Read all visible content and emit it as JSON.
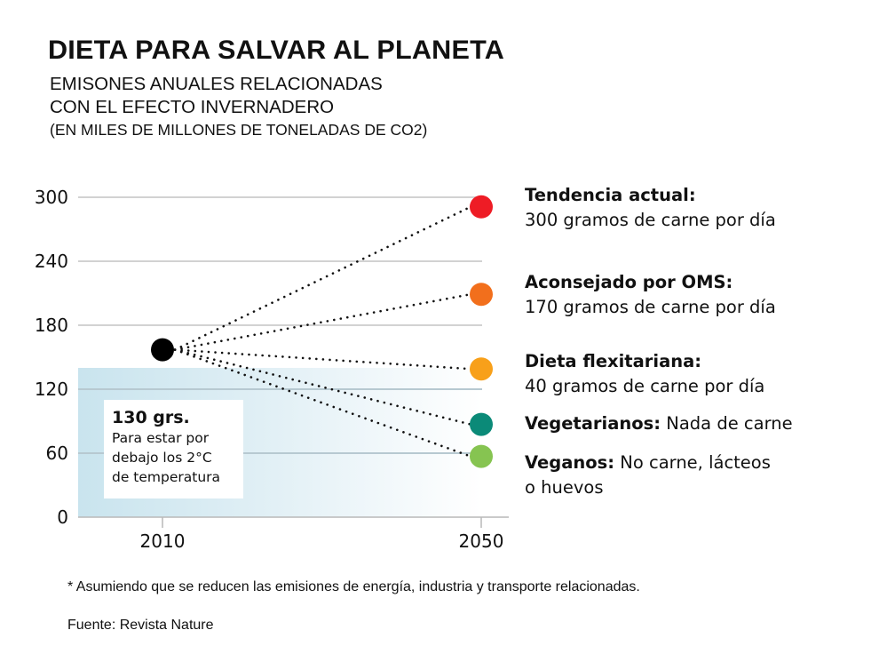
{
  "header": {
    "title": "DIETA PARA SALVAR AL PLANETA",
    "subtitle_line1": "EMISONES ANUALES RELACIONADAS",
    "subtitle_line2": "CON EL EFECTO INVERNADERO",
    "unit": "(EN MILES DE MILLONES DE TONELADAS DE CO2)"
  },
  "annotation": {
    "title": "130 grs.",
    "line1": "Para estar por",
    "line2": "debajo los 2°C",
    "line3": "de temperatura"
  },
  "legend": [
    {
      "bold": "Tendencia actual:",
      "text": "300 gramos de carne por día"
    },
    {
      "bold": "Aconsejado por OMS:",
      "text": "170 gramos de carne por día"
    },
    {
      "bold": "Dieta flexitariana:",
      "text": "40 gramos de carne por día"
    },
    {
      "bold": "Vegetarianos:",
      "text": " Nada de carne"
    },
    {
      "bold": "Veganos:",
      "text": " No carne, lácteos",
      "text2": "o huevos"
    }
  ],
  "footer": {
    "footnote": "* Asumiendo que se reducen las emisiones de energía, industria y transporte relacionadas.",
    "source": "Fuente: Revista Nature"
  },
  "chart_data": {
    "type": "scatter",
    "title": "DIETA PARA SALVAR AL PLANETA",
    "xlabel": "",
    "ylabel": "Emisiones anuales (miles de millones de toneladas de CO2)",
    "x_categories": [
      "2010",
      "2050"
    ],
    "yticks": [
      0,
      60,
      120,
      180,
      240,
      300
    ],
    "ylim": [
      0,
      300
    ],
    "grid": true,
    "shaded_region": {
      "from": 0,
      "to": 140,
      "label": "130 grs. Para estar por debajo los 2°C de temperatura"
    },
    "start": {
      "x": "2010",
      "y": 157,
      "color": "#000000"
    },
    "series": [
      {
        "name": "Tendencia actual",
        "x": "2050",
        "y": 291,
        "color": "#ee1c25"
      },
      {
        "name": "Aconsejado por OMS",
        "x": "2050",
        "y": 209,
        "color": "#f26f1c"
      },
      {
        "name": "Dieta flexitariana",
        "x": "2050",
        "y": 139,
        "color": "#f8a01a"
      },
      {
        "name": "Vegetarianos",
        "x": "2050",
        "y": 87,
        "color": "#0b8a78"
      },
      {
        "name": "Veganos",
        "x": "2050",
        "y": 57,
        "color": "#86c451"
      }
    ]
  }
}
